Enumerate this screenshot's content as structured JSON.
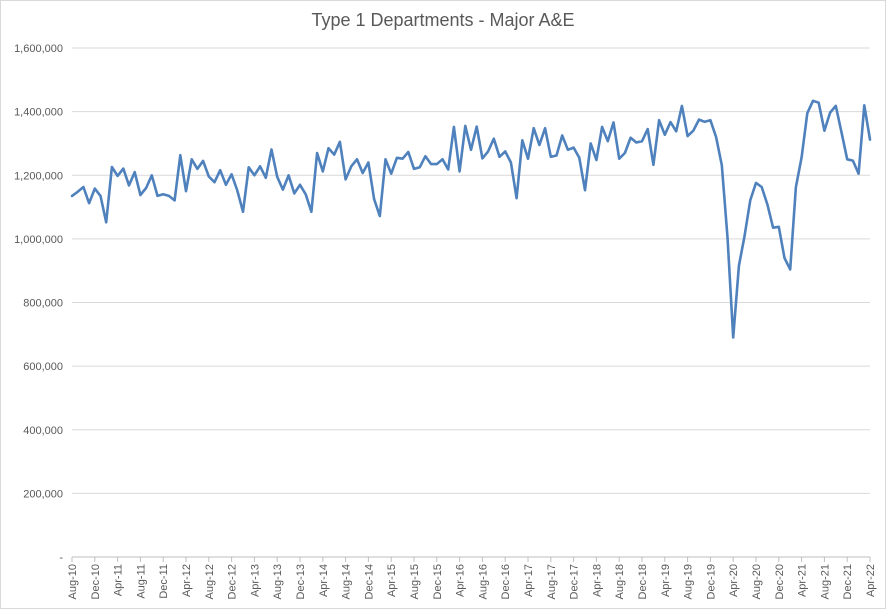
{
  "chart_data": {
    "type": "line",
    "title": "Type 1 Departments - Major A&E",
    "xlabel": "",
    "ylabel": "",
    "ylim": [
      0,
      1600000
    ],
    "grid": true,
    "legend": "none",
    "colors": {
      "series": "#4f81bd",
      "grid": "#d9d9d9",
      "axis": "#bfbfbf",
      "text": "#595959"
    },
    "y_ticks": [
      {
        "value": 0,
        "label": "-"
      },
      {
        "value": 200000,
        "label": "200,000"
      },
      {
        "value": 400000,
        "label": "400,000"
      },
      {
        "value": 600000,
        "label": "600,000"
      },
      {
        "value": 800000,
        "label": "800,000"
      },
      {
        "value": 1000000,
        "label": "1,000,000"
      },
      {
        "value": 1200000,
        "label": "1,200,000"
      },
      {
        "value": 1400000,
        "label": "1,400,000"
      },
      {
        "value": 1600000,
        "label": "1,600,000"
      }
    ],
    "x_tick_labels": [
      "Aug-10",
      "Dec-10",
      "Apr-11",
      "Aug-11",
      "Dec-11",
      "Apr-12",
      "Aug-12",
      "Dec-12",
      "Apr-13",
      "Aug-13",
      "Dec-13",
      "Apr-14",
      "Aug-14",
      "Dec-14",
      "Apr-15",
      "Aug-15",
      "Dec-15",
      "Apr-16",
      "Aug-16",
      "Dec-16",
      "Apr-17",
      "Aug-17",
      "Dec-17",
      "Apr-18",
      "Aug-18",
      "Dec-18",
      "Apr-19",
      "Aug-19",
      "Dec-19",
      "Apr-20",
      "Aug-20",
      "Dec-20",
      "Apr-21",
      "Aug-21",
      "Dec-21",
      "Apr-22"
    ],
    "x_label_step": 4,
    "categories": [
      "Aug-10",
      "Sep-10",
      "Oct-10",
      "Nov-10",
      "Dec-10",
      "Jan-11",
      "Feb-11",
      "Mar-11",
      "Apr-11",
      "May-11",
      "Jun-11",
      "Jul-11",
      "Aug-11",
      "Sep-11",
      "Oct-11",
      "Nov-11",
      "Dec-11",
      "Jan-12",
      "Feb-12",
      "Mar-12",
      "Apr-12",
      "May-12",
      "Jun-12",
      "Jul-12",
      "Aug-12",
      "Sep-12",
      "Oct-12",
      "Nov-12",
      "Dec-12",
      "Jan-13",
      "Feb-13",
      "Mar-13",
      "Apr-13",
      "May-13",
      "Jun-13",
      "Jul-13",
      "Aug-13",
      "Sep-13",
      "Oct-13",
      "Nov-13",
      "Dec-13",
      "Jan-14",
      "Feb-14",
      "Mar-14",
      "Apr-14",
      "May-14",
      "Jun-14",
      "Jul-14",
      "Aug-14",
      "Sep-14",
      "Oct-14",
      "Nov-14",
      "Dec-14",
      "Jan-15",
      "Feb-15",
      "Mar-15",
      "Apr-15",
      "May-15",
      "Jun-15",
      "Jul-15",
      "Aug-15",
      "Sep-15",
      "Oct-15",
      "Nov-15",
      "Dec-15",
      "Jan-16",
      "Feb-16",
      "Mar-16",
      "Apr-16",
      "May-16",
      "Jun-16",
      "Jul-16",
      "Aug-16",
      "Sep-16",
      "Oct-16",
      "Nov-16",
      "Dec-16",
      "Jan-17",
      "Feb-17",
      "Mar-17",
      "Apr-17",
      "May-17",
      "Jun-17",
      "Jul-17",
      "Aug-17",
      "Sep-17",
      "Oct-17",
      "Nov-17",
      "Dec-17",
      "Jan-18",
      "Feb-18",
      "Mar-18",
      "Apr-18",
      "May-18",
      "Jun-18",
      "Jul-18",
      "Aug-18",
      "Sep-18",
      "Oct-18",
      "Nov-18",
      "Dec-18",
      "Jan-19",
      "Feb-19",
      "Mar-19",
      "Apr-19",
      "May-19",
      "Jun-19",
      "Jul-19",
      "Aug-19",
      "Sep-19",
      "Oct-19",
      "Nov-19",
      "Dec-19",
      "Jan-20",
      "Feb-20",
      "Mar-20",
      "Apr-20",
      "May-20",
      "Jun-20",
      "Jul-20",
      "Aug-20",
      "Sep-20",
      "Oct-20",
      "Nov-20",
      "Dec-20",
      "Jan-21",
      "Feb-21",
      "Mar-21",
      "Apr-21",
      "May-21",
      "Jun-21",
      "Jul-21",
      "Aug-21",
      "Sep-21",
      "Oct-21",
      "Nov-21",
      "Dec-21",
      "Jan-22",
      "Feb-22",
      "Mar-22",
      "Apr-22"
    ],
    "series": [
      {
        "values": [
          1135000,
          1148000,
          1163000,
          1112000,
          1158000,
          1135000,
          1052000,
          1226000,
          1198000,
          1221000,
          1168000,
          1210000,
          1138000,
          1160000,
          1200000,
          1135000,
          1140000,
          1135000,
          1121000,
          1263000,
          1150000,
          1250000,
          1220000,
          1245000,
          1196000,
          1178000,
          1216000,
          1170000,
          1203000,
          1152000,
          1085000,
          1225000,
          1200000,
          1228000,
          1192000,
          1281000,
          1195000,
          1155000,
          1200000,
          1143000,
          1170000,
          1140000,
          1085000,
          1270000,
          1212000,
          1285000,
          1265000,
          1305000,
          1187000,
          1228000,
          1250000,
          1207000,
          1240000,
          1125000,
          1072000,
          1250000,
          1205000,
          1255000,
          1252000,
          1273000,
          1220000,
          1225000,
          1260000,
          1235000,
          1235000,
          1250000,
          1218000,
          1352000,
          1212000,
          1355000,
          1280000,
          1353000,
          1253000,
          1275000,
          1315000,
          1258000,
          1275000,
          1240000,
          1128000,
          1310000,
          1252000,
          1348000,
          1295000,
          1348000,
          1258000,
          1262000,
          1325000,
          1280000,
          1287000,
          1255000,
          1153000,
          1300000,
          1248000,
          1352000,
          1307000,
          1366000,
          1252000,
          1270000,
          1318000,
          1303000,
          1307000,
          1345000,
          1233000,
          1373000,
          1327000,
          1367000,
          1338000,
          1418000,
          1323000,
          1340000,
          1375000,
          1368000,
          1373000,
          1320000,
          1232000,
          1005000,
          690000,
          915000,
          1010000,
          1122000,
          1176000,
          1163000,
          1108000,
          1035000,
          1038000,
          940000,
          904000,
          1163000,
          1256000,
          1395000,
          1434000,
          1428000,
          1340000,
          1397000,
          1418000,
          1335000,
          1250000,
          1246000,
          1205000,
          1420000,
          1312000
        ]
      }
    ]
  }
}
